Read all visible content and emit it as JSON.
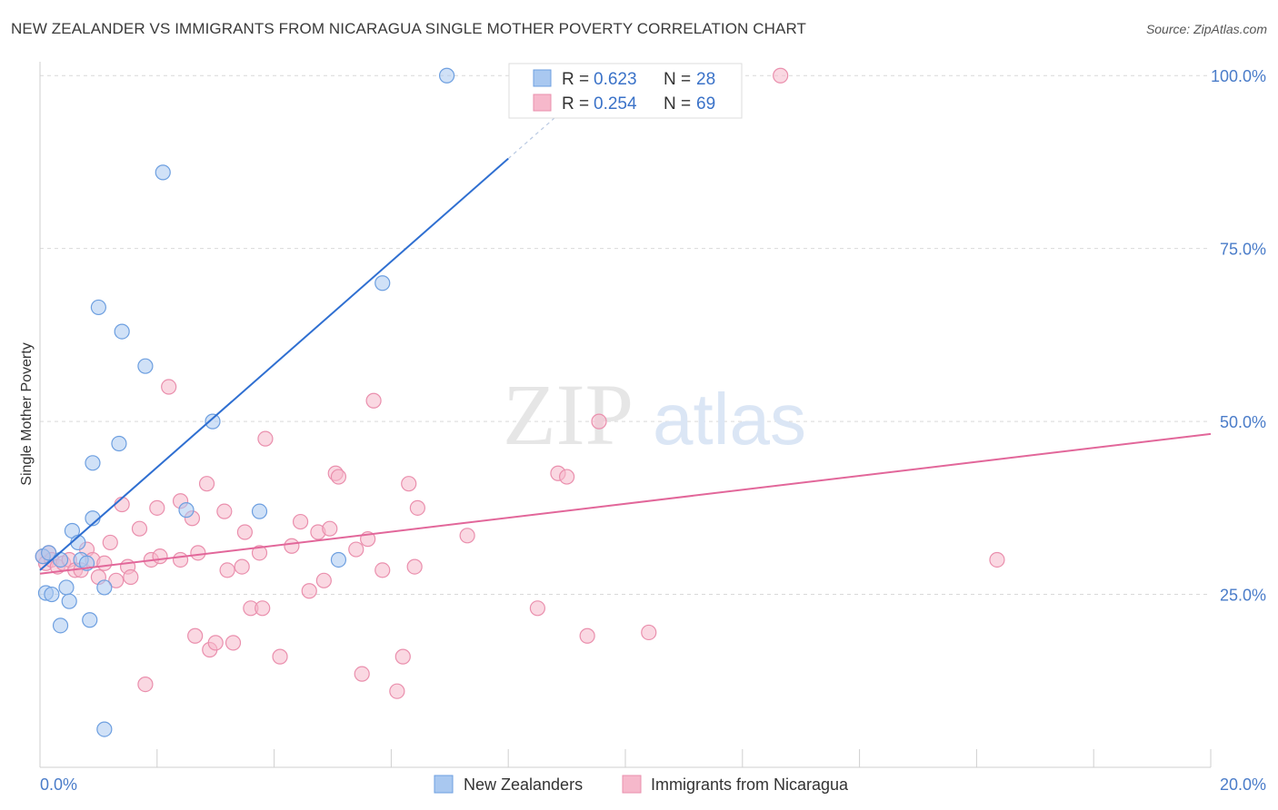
{
  "header": {
    "title": "NEW ZEALANDER VS IMMIGRANTS FROM NICARAGUA SINGLE MOTHER POVERTY CORRELATION CHART",
    "source": "Source: ZipAtlas.com"
  },
  "watermark": {
    "zip": "ZIP",
    "atlas": "atlas"
  },
  "colors": {
    "blue_fill": "#a9c8f0",
    "blue_stroke": "#6d9fe0",
    "blue_line": "#2f6fd1",
    "pink_fill": "#f6b8cb",
    "pink_stroke": "#ea8fad",
    "pink_line": "#e2679a",
    "grid": "#d9d9d9",
    "axis_text": "#4a7cc9"
  },
  "chart_data": {
    "type": "scatter",
    "xlabel": "",
    "ylabel": "Single Mother Poverty",
    "xlim": [
      0,
      20
    ],
    "ylim": [
      0,
      102
    ],
    "x_tick_labels": [
      {
        "value": 0,
        "label": "0.0%"
      },
      {
        "value": 20,
        "label": "20.0%"
      }
    ],
    "y_tick_labels": [
      {
        "value": 25,
        "label": "25.0%"
      },
      {
        "value": 50,
        "label": "50.0%"
      },
      {
        "value": 75,
        "label": "75.0%"
      },
      {
        "value": 100,
        "label": "100.0%"
      }
    ],
    "legend_stats": [
      {
        "r_label": "R =",
        "r_value": "0.623",
        "n_label": "N =",
        "n_value": "28"
      },
      {
        "r_label": "R =",
        "r_value": "0.254",
        "n_label": "N =",
        "n_value": "69"
      }
    ],
    "series": [
      {
        "name": "New Zealanders",
        "color": "blue",
        "trend": {
          "x0": 0,
          "y0": 28.5,
          "x1": 8.0,
          "y1": 88.0,
          "dash_to_x": 9.3
        },
        "points": [
          [
            0.05,
            30.5
          ],
          [
            0.1,
            25.2
          ],
          [
            0.15,
            31.0
          ],
          [
            0.2,
            25.0
          ],
          [
            0.35,
            30.0
          ],
          [
            0.35,
            20.5
          ],
          [
            0.45,
            26.0
          ],
          [
            0.5,
            24.0
          ],
          [
            0.55,
            34.2
          ],
          [
            0.65,
            32.5
          ],
          [
            0.7,
            30.0
          ],
          [
            0.8,
            29.5
          ],
          [
            0.85,
            21.3
          ],
          [
            0.9,
            36.0
          ],
          [
            0.9,
            44.0
          ],
          [
            1.0,
            66.5
          ],
          [
            1.1,
            26.0
          ],
          [
            1.1,
            5.5
          ],
          [
            1.4,
            63.0
          ],
          [
            1.35,
            46.8
          ],
          [
            1.8,
            58.0
          ],
          [
            2.1,
            86.0
          ],
          [
            2.5,
            37.2
          ],
          [
            2.95,
            50.0
          ],
          [
            3.75,
            37.0
          ],
          [
            5.1,
            30.0
          ],
          [
            5.85,
            70.0
          ],
          [
            6.95,
            100.0
          ]
        ]
      },
      {
        "name": "Immigrants from Nicaragua",
        "color": "pink",
        "trend": {
          "x0": 0,
          "y0": 28.0,
          "x1": 20.0,
          "y1": 48.2
        },
        "points": [
          [
            0.05,
            30.5
          ],
          [
            0.1,
            29.5
          ],
          [
            0.15,
            31.0
          ],
          [
            0.2,
            30.0
          ],
          [
            0.3,
            29.0
          ],
          [
            0.4,
            29.5
          ],
          [
            0.5,
            30.0
          ],
          [
            0.6,
            28.5
          ],
          [
            0.7,
            28.5
          ],
          [
            0.8,
            31.5
          ],
          [
            0.9,
            30.0
          ],
          [
            1.0,
            27.5
          ],
          [
            1.1,
            29.5
          ],
          [
            1.2,
            32.5
          ],
          [
            1.3,
            27.0
          ],
          [
            1.4,
            38.0
          ],
          [
            1.5,
            29.0
          ],
          [
            1.55,
            27.5
          ],
          [
            1.7,
            34.5
          ],
          [
            1.8,
            12.0
          ],
          [
            1.9,
            30.0
          ],
          [
            2.0,
            37.5
          ],
          [
            2.05,
            30.5
          ],
          [
            2.2,
            55.0
          ],
          [
            2.4,
            30.0
          ],
          [
            2.4,
            38.5
          ],
          [
            2.6,
            36.0
          ],
          [
            2.65,
            19.0
          ],
          [
            2.7,
            31.0
          ],
          [
            2.85,
            41.0
          ],
          [
            2.9,
            17.0
          ],
          [
            3.0,
            18.0
          ],
          [
            3.15,
            37.0
          ],
          [
            3.2,
            28.5
          ],
          [
            3.3,
            18.0
          ],
          [
            3.45,
            29.0
          ],
          [
            3.5,
            34.0
          ],
          [
            3.6,
            23.0
          ],
          [
            3.75,
            31.0
          ],
          [
            3.8,
            23.0
          ],
          [
            3.85,
            47.5
          ],
          [
            4.1,
            16.0
          ],
          [
            4.3,
            32.0
          ],
          [
            4.45,
            35.5
          ],
          [
            4.6,
            25.5
          ],
          [
            4.75,
            34.0
          ],
          [
            4.85,
            27.0
          ],
          [
            4.95,
            34.5
          ],
          [
            5.05,
            42.5
          ],
          [
            5.1,
            42.0
          ],
          [
            5.4,
            31.5
          ],
          [
            5.5,
            13.5
          ],
          [
            5.6,
            33.0
          ],
          [
            5.7,
            53.0
          ],
          [
            5.85,
            28.5
          ],
          [
            6.1,
            11.0
          ],
          [
            6.2,
            16.0
          ],
          [
            6.3,
            41.0
          ],
          [
            6.4,
            29.0
          ],
          [
            6.45,
            37.5
          ],
          [
            7.3,
            33.5
          ],
          [
            8.5,
            23.0
          ],
          [
            8.85,
            42.5
          ],
          [
            9.0,
            42.0
          ],
          [
            9.35,
            19.0
          ],
          [
            9.55,
            50.0
          ],
          [
            10.4,
            19.5
          ],
          [
            12.65,
            100.0
          ],
          [
            16.35,
            30.0
          ]
        ]
      }
    ]
  }
}
